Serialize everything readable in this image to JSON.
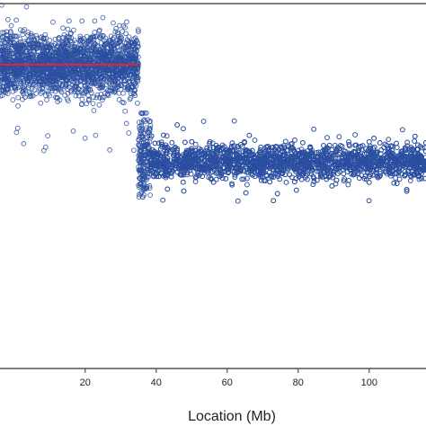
{
  "chart_data": {
    "type": "scatter",
    "title": "",
    "xlabel": "Location (Mb)",
    "ylabel": "",
    "xlim": [
      -4,
      116
    ],
    "ylim": [
      0,
      1
    ],
    "x_ticks": [
      20,
      40,
      60,
      80,
      100
    ],
    "x_tick_labels": [
      "20",
      "40",
      "60",
      "80",
      "100"
    ],
    "grid": false,
    "legend": "none",
    "colors": {
      "points": "#2a4fa0",
      "segment": "#e0243c",
      "axis": "#555555"
    },
    "series": [
      {
        "marker": "open-circle",
        "bands": [
          {
            "x_range": [
              -4,
              35
            ],
            "center": 0.833,
            "spread": 0.042,
            "outlier_min": 0.59,
            "outlier_max": 0.996
          },
          {
            "x_range": [
              35,
              38.5
            ],
            "center": 0.58,
            "spread": 0.06,
            "outlier_min": 0.47,
            "outlier_max": 0.7
          },
          {
            "x_range": [
              38.5,
              116
            ],
            "center": 0.567,
            "spread": 0.024,
            "outlier_min": 0.455,
            "outlier_max": 0.68
          }
        ]
      }
    ],
    "segments": [
      {
        "x_start": -4,
        "x_end": 35,
        "y": 0.833
      }
    ]
  }
}
